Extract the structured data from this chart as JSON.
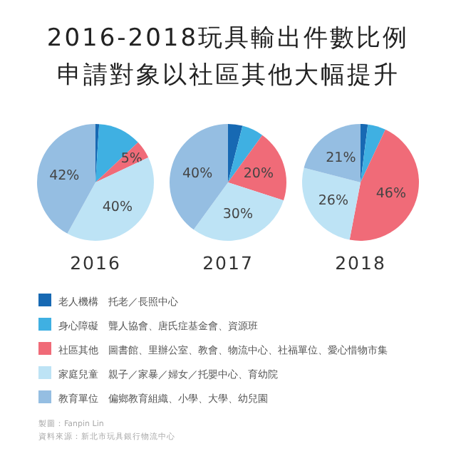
{
  "chart_data": [
    {
      "type": "other",
      "title": "2016-2018玩具輸出件數比例",
      "subtitle": "申請對象以社區其他大幅提升",
      "annotations": [
        "製圖：Fanpin Lin",
        "資料來源：新北市玩具銀行物流中心"
      ]
    },
    {
      "type": "pie",
      "xlabel": "2016",
      "legend": "bottom",
      "categories": [
        "老人機構　托老／長照中心",
        "身心障礙　聾人協會、唐氏症基金會、資源班",
        "社區其他　圖書館、里辦公室、教會、物流中心、社福單位、愛心惜物市集",
        "家庭兒童　親子／家暴／婦女／托嬰中心、育幼院",
        "教育單位　偏鄉教育組織、小學、大學、幼兒園"
      ],
      "values": [
        1,
        12,
        5,
        40,
        42
      ],
      "value_labels": [
        null,
        null,
        "5%",
        "40%",
        "42%"
      ],
      "colors": [
        "#1769b3",
        "#3fb0e2",
        "#f06b78",
        "#bde3f5",
        "#95bee2"
      ]
    },
    {
      "type": "pie",
      "xlabel": "2017",
      "categories": [
        null,
        null,
        null,
        null,
        null
      ],
      "values": [
        4,
        6,
        20,
        30,
        40
      ],
      "value_labels": [
        null,
        null,
        "20%",
        "30%",
        "40%"
      ],
      "colors": [
        "#1769b3",
        "#3fb0e2",
        "#f06b78",
        "#bde3f5",
        "#95bee2"
      ]
    },
    {
      "type": "pie",
      "xlabel": "2018",
      "categories": [
        null,
        null,
        null,
        null,
        null
      ],
      "values": [
        2,
        5,
        46,
        26,
        21
      ],
      "value_labels": [
        null,
        null,
        "46%",
        "26%",
        "21%"
      ],
      "colors": [
        "#1769b3",
        "#3fb0e2",
        "#f06b78",
        "#bde3f5",
        "#95bee2"
      ]
    }
  ]
}
